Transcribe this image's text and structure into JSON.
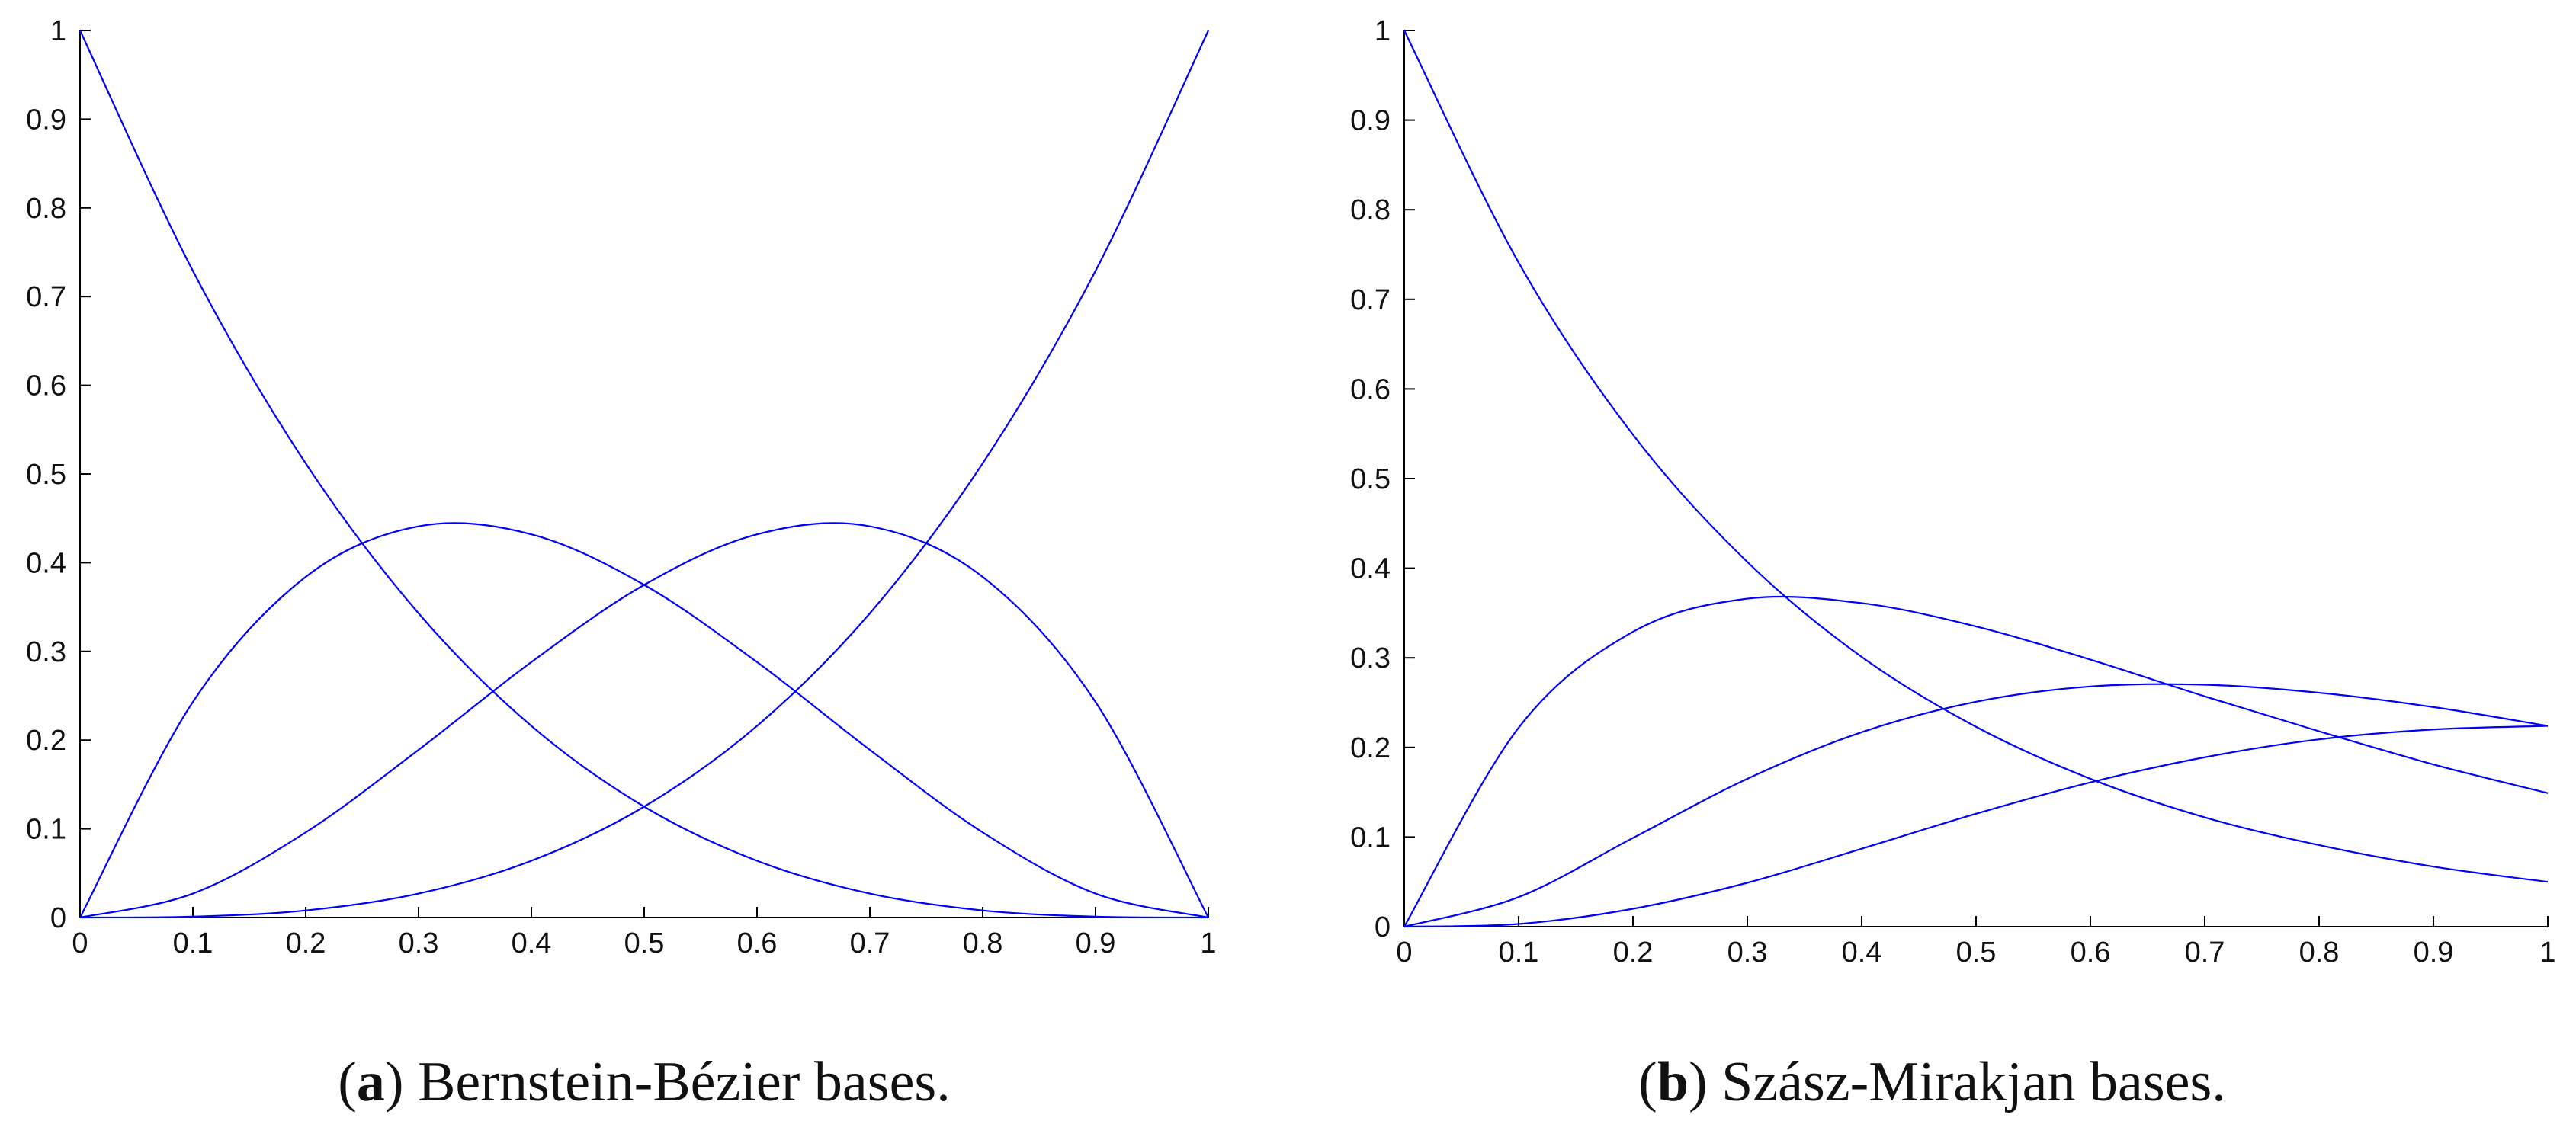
{
  "chart_data": [
    {
      "type": "line",
      "caption_letter": "a",
      "caption_text": " Bernstein-Bézier bases.",
      "xlim": [
        0,
        1
      ],
      "ylim": [
        0,
        1
      ],
      "x_ticks": [
        "0",
        "0.1",
        "0.2",
        "0.3",
        "0.4",
        "0.5",
        "0.6",
        "0.7",
        "0.8",
        "0.9",
        "1"
      ],
      "y_ticks": [
        "0",
        "0.1",
        "0.2",
        "0.3",
        "0.4",
        "0.5",
        "0.6",
        "0.7",
        "0.8",
        "0.9",
        "1"
      ],
      "grid": false,
      "line_color": "#0000ff",
      "x": [
        0,
        0.1,
        0.2,
        0.3,
        0.4,
        0.5,
        0.6,
        0.7,
        0.8,
        0.9,
        1
      ],
      "series": [
        {
          "values": [
            1,
            0.729,
            0.512,
            0.343,
            0.216,
            0.125,
            0.064,
            0.027,
            0.008,
            0.001,
            0
          ]
        },
        {
          "values": [
            0,
            0.243,
            0.384,
            0.441,
            0.432,
            0.375,
            0.288,
            0.189,
            0.096,
            0.027,
            0
          ]
        },
        {
          "values": [
            0,
            0.027,
            0.096,
            0.189,
            0.288,
            0.375,
            0.432,
            0.441,
            0.384,
            0.243,
            0
          ]
        },
        {
          "values": [
            0,
            0.001,
            0.008,
            0.027,
            0.064,
            0.125,
            0.216,
            0.343,
            0.512,
            0.729,
            1
          ]
        }
      ]
    },
    {
      "type": "line",
      "caption_letter": "b",
      "caption_text": " Szász-Mirakjan bases.",
      "xlim": [
        0,
        1
      ],
      "ylim": [
        0,
        1
      ],
      "x_ticks": [
        "0",
        "0.1",
        "0.2",
        "0.3",
        "0.4",
        "0.5",
        "0.6",
        "0.7",
        "0.8",
        "0.9",
        "1"
      ],
      "y_ticks": [
        "0",
        "0.1",
        "0.2",
        "0.3",
        "0.4",
        "0.5",
        "0.6",
        "0.7",
        "0.8",
        "0.9",
        "1"
      ],
      "grid": false,
      "line_color": "#0000ff",
      "x": [
        0,
        0.1,
        0.2,
        0.3,
        0.4,
        0.5,
        0.6,
        0.7,
        0.8,
        0.9,
        1
      ],
      "series": [
        {
          "values": [
            1,
            0.741,
            0.549,
            0.407,
            0.301,
            0.223,
            0.165,
            0.122,
            0.091,
            0.067,
            0.05
          ]
        },
        {
          "values": [
            0,
            0.222,
            0.329,
            0.366,
            0.361,
            0.335,
            0.298,
            0.257,
            0.218,
            0.181,
            0.149
          ]
        },
        {
          "values": [
            0,
            0.033,
            0.099,
            0.165,
            0.217,
            0.251,
            0.268,
            0.27,
            0.261,
            0.245,
            0.224
          ]
        },
        {
          "values": [
            0,
            0.003,
            0.02,
            0.049,
            0.087,
            0.126,
            0.161,
            0.189,
            0.209,
            0.22,
            0.224
          ]
        }
      ]
    }
  ]
}
